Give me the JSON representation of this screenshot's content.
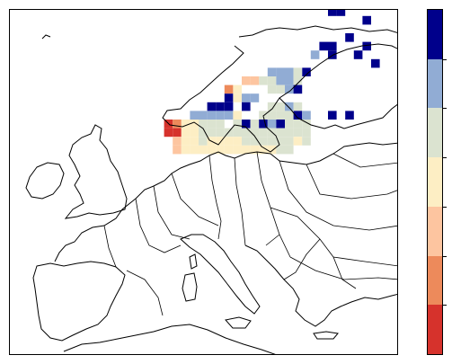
{
  "map": {
    "region": "Europe",
    "coastline_color": "#000000",
    "background": "#ffffff"
  },
  "legend": {
    "type": "discrete-colorbar",
    "orientation": "vertical",
    "placement": "right",
    "tick_labels": [],
    "classes": [
      {
        "level": 7,
        "color": "#00008b"
      },
      {
        "level": 6,
        "color": "#91acd4"
      },
      {
        "level": 5,
        "color": "#dbe3d0"
      },
      {
        "level": 4,
        "color": "#fdeec4"
      },
      {
        "level": 3,
        "color": "#fdc5a0"
      },
      {
        "level": 2,
        "color": "#ed8a5b"
      },
      {
        "level": 1,
        "color": "#d6322c"
      }
    ]
  },
  "grid_data": {
    "description_colors_only": true,
    "cells": [
      {
        "c": 40,
        "r": 7,
        "v": 7
      },
      {
        "c": 41,
        "r": 7,
        "v": 7
      },
      {
        "c": 44,
        "r": 8,
        "v": 7
      },
      {
        "c": 42,
        "r": 10,
        "v": 7
      },
      {
        "c": 39,
        "r": 11,
        "v": 7
      },
      {
        "c": 40,
        "r": 11,
        "v": 7
      },
      {
        "c": 44,
        "r": 11,
        "v": 7
      },
      {
        "c": 38,
        "r": 12,
        "v": 6
      },
      {
        "c": 40,
        "r": 12,
        "v": 7
      },
      {
        "c": 43,
        "r": 12,
        "v": 7
      },
      {
        "c": 45,
        "r": 13,
        "v": 7
      },
      {
        "c": 37,
        "r": 14,
        "v": 7
      },
      {
        "c": 33,
        "r": 14,
        "v": 6
      },
      {
        "c": 34,
        "r": 14,
        "v": 6
      },
      {
        "c": 35,
        "r": 14,
        "v": 6
      },
      {
        "c": 36,
        "r": 14,
        "v": 5
      },
      {
        "c": 32,
        "r": 15,
        "v": 5
      },
      {
        "c": 33,
        "r": 15,
        "v": 5
      },
      {
        "c": 34,
        "r": 15,
        "v": 6
      },
      {
        "c": 35,
        "r": 15,
        "v": 6
      },
      {
        "c": 36,
        "r": 15,
        "v": 5
      },
      {
        "c": 30,
        "r": 15,
        "v": 3
      },
      {
        "c": 31,
        "r": 15,
        "v": 3
      },
      {
        "c": 28,
        "r": 16,
        "v": 2
      },
      {
        "c": 29,
        "r": 16,
        "v": 4
      },
      {
        "c": 33,
        "r": 16,
        "v": 5
      },
      {
        "c": 34,
        "r": 16,
        "v": 5
      },
      {
        "c": 35,
        "r": 16,
        "v": 6
      },
      {
        "c": 36,
        "r": 16,
        "v": 7
      },
      {
        "c": 30,
        "r": 17,
        "v": 6
      },
      {
        "c": 31,
        "r": 17,
        "v": 6
      },
      {
        "c": 28,
        "r": 17,
        "v": 7
      },
      {
        "c": 29,
        "r": 17,
        "v": 4
      },
      {
        "c": 26,
        "r": 18,
        "v": 7
      },
      {
        "c": 27,
        "r": 18,
        "v": 7
      },
      {
        "c": 28,
        "r": 18,
        "v": 7
      },
      {
        "c": 30,
        "r": 18,
        "v": 7
      },
      {
        "c": 33,
        "r": 18,
        "v": 5
      },
      {
        "c": 34,
        "r": 18,
        "v": 5
      },
      {
        "c": 35,
        "r": 18,
        "v": 6
      },
      {
        "c": 36,
        "r": 18,
        "v": 5
      },
      {
        "c": 24,
        "r": 19,
        "v": 6
      },
      {
        "c": 25,
        "r": 19,
        "v": 6
      },
      {
        "c": 26,
        "r": 19,
        "v": 6
      },
      {
        "c": 27,
        "r": 19,
        "v": 6
      },
      {
        "c": 28,
        "r": 19,
        "v": 6
      },
      {
        "c": 29,
        "r": 19,
        "v": 4
      },
      {
        "c": 32,
        "r": 19,
        "v": 5
      },
      {
        "c": 33,
        "r": 19,
        "v": 5
      },
      {
        "c": 34,
        "r": 19,
        "v": 5
      },
      {
        "c": 35,
        "r": 19,
        "v": 5
      },
      {
        "c": 36,
        "r": 19,
        "v": 7
      },
      {
        "c": 37,
        "r": 19,
        "v": 6
      },
      {
        "c": 40,
        "r": 19,
        "v": 7
      },
      {
        "c": 42,
        "r": 19,
        "v": 7
      },
      {
        "c": 21,
        "r": 20,
        "v": 1
      },
      {
        "c": 22,
        "r": 20,
        "v": 2
      },
      {
        "c": 23,
        "r": 20,
        "v": 4
      },
      {
        "c": 24,
        "r": 20,
        "v": 4
      },
      {
        "c": 25,
        "r": 20,
        "v": 5
      },
      {
        "c": 26,
        "r": 20,
        "v": 5
      },
      {
        "c": 27,
        "r": 20,
        "v": 5
      },
      {
        "c": 29,
        "r": 20,
        "v": 5
      },
      {
        "c": 30,
        "r": 20,
        "v": 7
      },
      {
        "c": 31,
        "r": 20,
        "v": 5
      },
      {
        "c": 32,
        "r": 20,
        "v": 7
      },
      {
        "c": 33,
        "r": 20,
        "v": 6
      },
      {
        "c": 34,
        "r": 20,
        "v": 7
      },
      {
        "c": 35,
        "r": 20,
        "v": 5
      },
      {
        "c": 36,
        "r": 20,
        "v": 5
      },
      {
        "c": 37,
        "r": 20,
        "v": 5
      },
      {
        "c": 21,
        "r": 21,
        "v": 1
      },
      {
        "c": 22,
        "r": 21,
        "v": 1
      },
      {
        "c": 23,
        "r": 21,
        "v": 4
      },
      {
        "c": 24,
        "r": 21,
        "v": 4
      },
      {
        "c": 25,
        "r": 21,
        "v": 5
      },
      {
        "c": 26,
        "r": 21,
        "v": 5
      },
      {
        "c": 27,
        "r": 21,
        "v": 5
      },
      {
        "c": 28,
        "r": 21,
        "v": 5
      },
      {
        "c": 29,
        "r": 21,
        "v": 5
      },
      {
        "c": 30,
        "r": 21,
        "v": 5
      },
      {
        "c": 31,
        "r": 21,
        "v": 5
      },
      {
        "c": 32,
        "r": 21,
        "v": 5
      },
      {
        "c": 33,
        "r": 21,
        "v": 5
      },
      {
        "c": 34,
        "r": 21,
        "v": 5
      },
      {
        "c": 35,
        "r": 21,
        "v": 5
      },
      {
        "c": 36,
        "r": 21,
        "v": 5
      },
      {
        "c": 37,
        "r": 21,
        "v": 5
      },
      {
        "c": 22,
        "r": 22,
        "v": 3
      },
      {
        "c": 23,
        "r": 22,
        "v": 4
      },
      {
        "c": 24,
        "r": 22,
        "v": 4
      },
      {
        "c": 25,
        "r": 22,
        "v": 5
      },
      {
        "c": 26,
        "r": 22,
        "v": 4
      },
      {
        "c": 27,
        "r": 22,
        "v": 4
      },
      {
        "c": 28,
        "r": 22,
        "v": 4
      },
      {
        "c": 29,
        "r": 22,
        "v": 4
      },
      {
        "c": 30,
        "r": 22,
        "v": 5
      },
      {
        "c": 31,
        "r": 22,
        "v": 5
      },
      {
        "c": 32,
        "r": 22,
        "v": 5
      },
      {
        "c": 33,
        "r": 22,
        "v": 5
      },
      {
        "c": 34,
        "r": 22,
        "v": 5
      },
      {
        "c": 35,
        "r": 22,
        "v": 5
      },
      {
        "c": 36,
        "r": 22,
        "v": 4
      },
      {
        "c": 37,
        "r": 22,
        "v": 5
      },
      {
        "c": 22,
        "r": 23,
        "v": 3
      },
      {
        "c": 23,
        "r": 23,
        "v": 4
      },
      {
        "c": 24,
        "r": 23,
        "v": 4
      },
      {
        "c": 25,
        "r": 23,
        "v": 4
      },
      {
        "c": 26,
        "r": 23,
        "v": 4
      },
      {
        "c": 27,
        "r": 23,
        "v": 4
      },
      {
        "c": 28,
        "r": 23,
        "v": 4
      },
      {
        "c": 29,
        "r": 23,
        "v": 4
      },
      {
        "c": 30,
        "r": 23,
        "v": 4
      },
      {
        "c": 31,
        "r": 23,
        "v": 4
      },
      {
        "c": 32,
        "r": 23,
        "v": 4
      },
      {
        "c": 33,
        "r": 23,
        "v": 4
      },
      {
        "c": 34,
        "r": 23,
        "v": 5
      },
      {
        "c": 35,
        "r": 23,
        "v": 5
      }
    ]
  }
}
